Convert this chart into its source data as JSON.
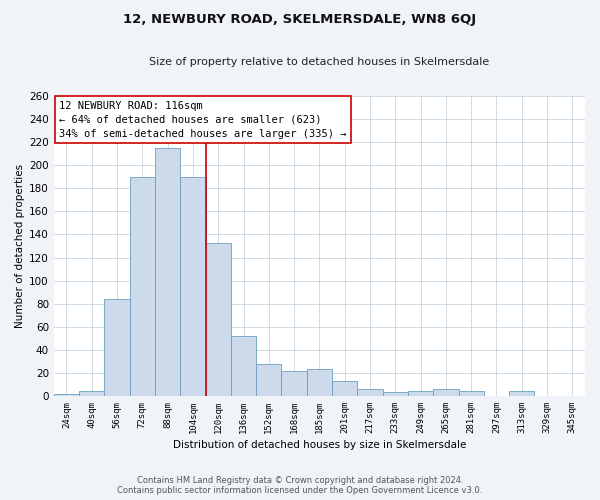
{
  "title": "12, NEWBURY ROAD, SKELMERSDALE, WN8 6QJ",
  "subtitle": "Size of property relative to detached houses in Skelmersdale",
  "xlabel": "Distribution of detached houses by size in Skelmersdale",
  "ylabel": "Number of detached properties",
  "bar_labels": [
    "24sqm",
    "40sqm",
    "56sqm",
    "72sqm",
    "88sqm",
    "104sqm",
    "120sqm",
    "136sqm",
    "152sqm",
    "168sqm",
    "185sqm",
    "201sqm",
    "217sqm",
    "233sqm",
    "249sqm",
    "265sqm",
    "281sqm",
    "297sqm",
    "313sqm",
    "329sqm",
    "345sqm"
  ],
  "bar_values": [
    2,
    4,
    84,
    190,
    215,
    190,
    133,
    52,
    28,
    22,
    23,
    13,
    6,
    3,
    4,
    6,
    4,
    0,
    4,
    0,
    0
  ],
  "bar_color": "#ccdaeb",
  "bar_edge_color": "#6a9fc0",
  "ylim": [
    0,
    260
  ],
  "yticks": [
    0,
    20,
    40,
    60,
    80,
    100,
    120,
    140,
    160,
    180,
    200,
    220,
    240,
    260
  ],
  "vline_x_index": 6,
  "vline_color": "#cc0000",
  "annotation_title": "12 NEWBURY ROAD: 116sqm",
  "annotation_line1": "← 64% of detached houses are smaller (623)",
  "annotation_line2": "34% of semi-detached houses are larger (335) →",
  "annotation_box_color": "#ffffff",
  "annotation_box_edge": "#cc0000",
  "footer_line1": "Contains HM Land Registry data © Crown copyright and database right 2024.",
  "footer_line2": "Contains public sector information licensed under the Open Government Licence v3.0.",
  "bg_color": "#f0f4f8",
  "plot_bg_color": "#ffffff",
  "grid_color": "#c8d4de"
}
